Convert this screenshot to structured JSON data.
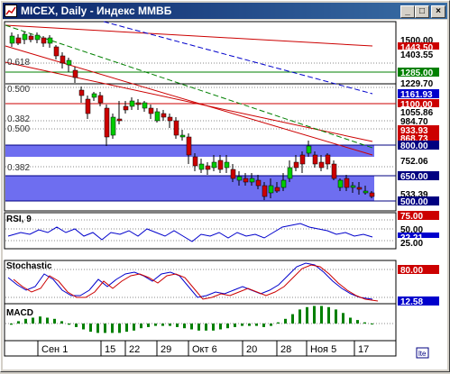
{
  "window": {
    "title": "MICEX, Daily - Индекс ММВБ",
    "buttons": {
      "minimize": "_",
      "maximize": "□",
      "close": "×"
    }
  },
  "main_panel": {
    "price_labels": [
      {
        "text": "1500.00",
        "bg": "#ffffff",
        "color": "#000000"
      },
      {
        "text": "1443.50",
        "bg": "#cc0000",
        "color": "#ffffff"
      },
      {
        "text": "1403.55",
        "bg": "#ffffff",
        "color": "#000000"
      },
      {
        "text": "1285.00",
        "bg": "#008000",
        "color": "#ffffff"
      },
      {
        "text": "1229.70",
        "bg": "#ffffff",
        "color": "#000000"
      },
      {
        "text": "1161.93",
        "bg": "#0000cc",
        "color": "#ffffff"
      },
      {
        "text": "1100.00",
        "bg": "#cc0000",
        "color": "#ffffff"
      },
      {
        "text": "1055.86",
        "bg": "#ffffff",
        "color": "#000000"
      },
      {
        "text": "984.70",
        "bg": "#ffffff",
        "color": "#000000"
      },
      {
        "text": "933.93",
        "bg": "#cc0000",
        "color": "#ffffff"
      },
      {
        "text": "868.73",
        "bg": "#cc0000",
        "color": "#ffffff"
      },
      {
        "text": "800.00",
        "bg": "#000080",
        "color": "#ffffff"
      },
      {
        "text": "752.06",
        "bg": "#ffffff",
        "color": "#000000"
      },
      {
        "text": "650.00",
        "bg": "#000080",
        "color": "#ffffff"
      },
      {
        "text": "533.39",
        "bg": "#ffffff",
        "color": "#000000"
      },
      {
        "text": "500.00",
        "bg": "#000080",
        "color": "#ffffff"
      }
    ],
    "fib_labels": [
      "0.618",
      "0.500",
      "0.382",
      "0.500",
      "0.382"
    ]
  },
  "rsi_panel": {
    "title": "RSI, 9",
    "labels": [
      {
        "text": "75.00",
        "bg": "#cc0000",
        "color": "#ffffff"
      },
      {
        "text": "50.00",
        "bg": "#ffffff",
        "color": "#000000"
      },
      {
        "text": "32.21",
        "bg": "#0000cc",
        "color": "#ffffff"
      },
      {
        "text": "25.00",
        "bg": "#ffffff",
        "color": "#000000"
      }
    ]
  },
  "stoch_panel": {
    "title": "Stochastic",
    "labels": [
      {
        "text": "80.00",
        "bg": "#cc0000",
        "color": "#ffffff"
      },
      {
        "text": "12.58",
        "bg": "#0000cc",
        "color": "#ffffff"
      }
    ]
  },
  "macd_panel": {
    "title": "MACD"
  },
  "x_axis": {
    "labels": [
      "Сен 1",
      "15",
      "22",
      "29",
      "Окт 6",
      "20",
      "28",
      "Ноя 5",
      "17"
    ]
  },
  "colors": {
    "bull": "#00cc00",
    "bear": "#cc0000",
    "band": "#6e6ef0",
    "macd": "#008000"
  }
}
